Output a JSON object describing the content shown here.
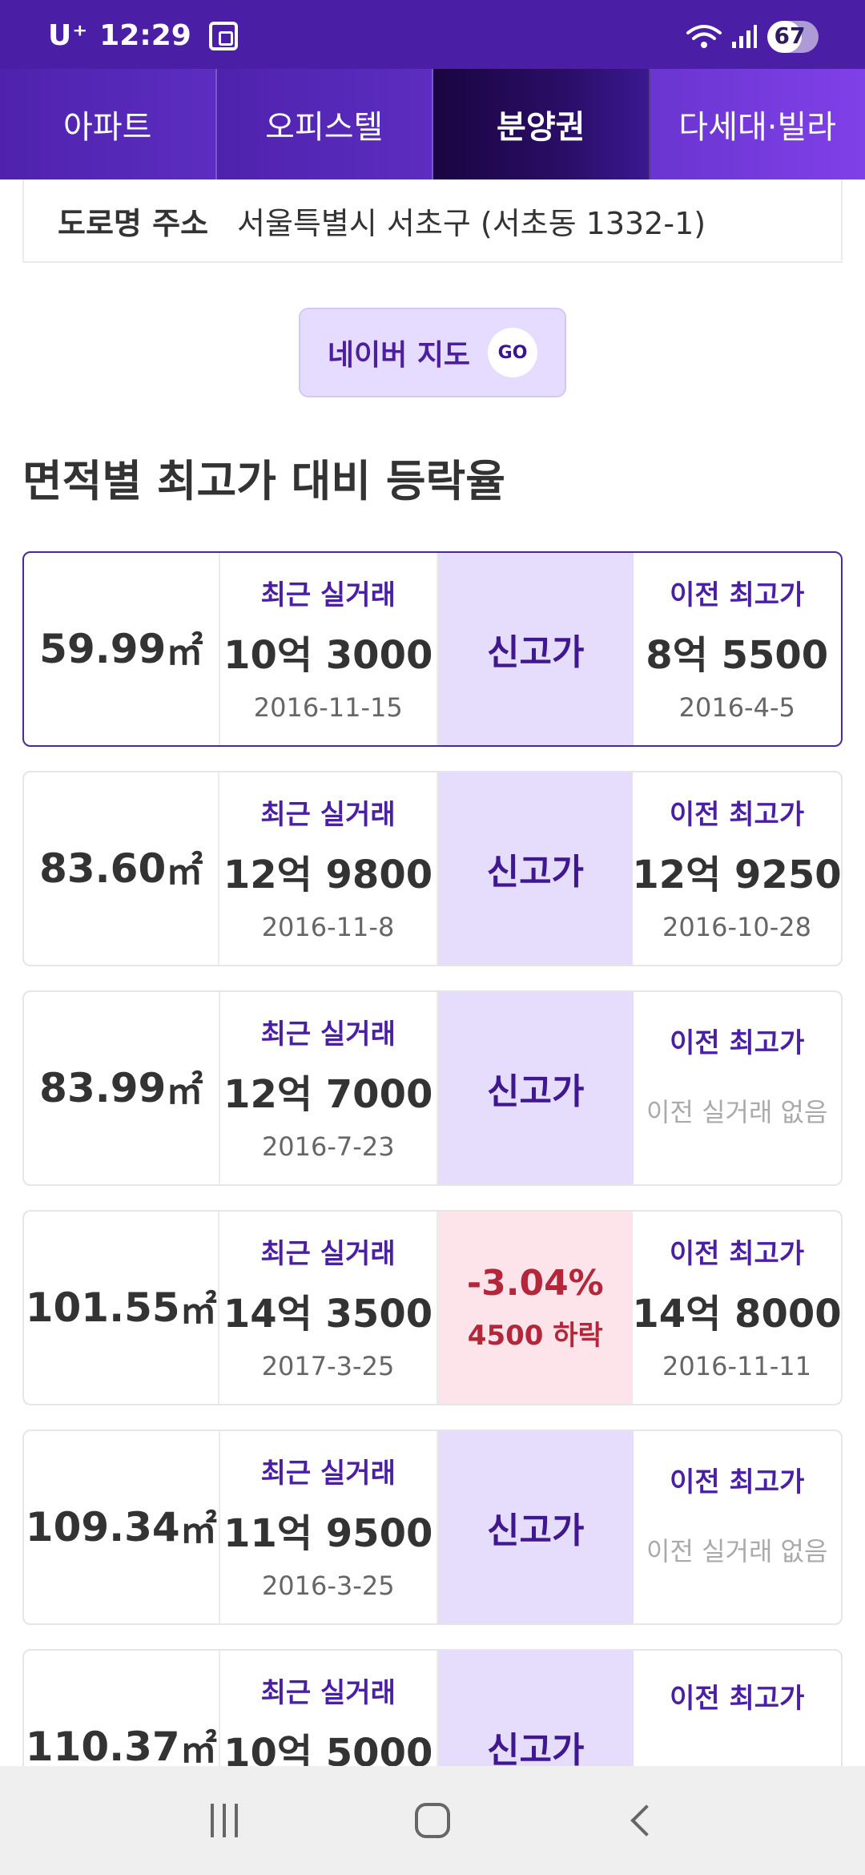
{
  "status_bar": {
    "carrier": "U⁺",
    "time": "12:29",
    "battery": "67",
    "battery_level": 0.67
  },
  "tabs": [
    {
      "label": "아파트",
      "active": false
    },
    {
      "label": "오피스텔",
      "active": false
    },
    {
      "label": "분양권",
      "active": true
    },
    {
      "label": "다세대·빌라",
      "active": false
    }
  ],
  "address": {
    "label": "도로명 주소",
    "value": "서울특별시 서초구 (서초동 1332-1)"
  },
  "map_button": {
    "label": "네이버 지도",
    "go": "GO"
  },
  "section": {
    "title": "면적별 최고가 대비 등락율"
  },
  "column_labels": {
    "recent": "최근 실거래",
    "prev": "이전 최고가"
  },
  "unit": "㎡",
  "cards": [
    {
      "area": "59.99",
      "recent_price": "10억 3000",
      "recent_date": "2016-11-15",
      "status": "신고가",
      "prev_price": "8억 5500",
      "prev_date": "2016-4-5"
    },
    {
      "area": "83.60",
      "recent_price": "12억 9800",
      "recent_date": "2016-11-8",
      "status": "신고가",
      "prev_price": "12억 9250",
      "prev_date": "2016-10-28"
    },
    {
      "area": "83.99",
      "recent_price": "12억 7000",
      "recent_date": "2016-7-23",
      "status": "신고가",
      "prev_none": "이전 실거래 없음"
    },
    {
      "area": "101.55",
      "recent_price": "14억 3500",
      "recent_date": "2017-3-25",
      "drop_pct": "-3.04%",
      "drop_amount": "4500 하락",
      "prev_price": "14억 8000",
      "prev_date": "2016-11-11"
    },
    {
      "area": "109.34",
      "recent_price": "11억 9500",
      "recent_date": "2016-3-25",
      "status": "신고가",
      "prev_none": "이전 실거래 없음"
    },
    {
      "area": "110.37",
      "recent_price": "10억 5000",
      "status": "신고가"
    }
  ],
  "colors": {
    "brand_purple": "#4a1fa6",
    "status_bg": "#e6ddfd",
    "drop_bg": "#fce4ea",
    "drop_text": "#b4263a"
  },
  "nav_bar": {
    "icons": [
      "recent-apps-icon",
      "home-icon",
      "back-icon"
    ]
  }
}
